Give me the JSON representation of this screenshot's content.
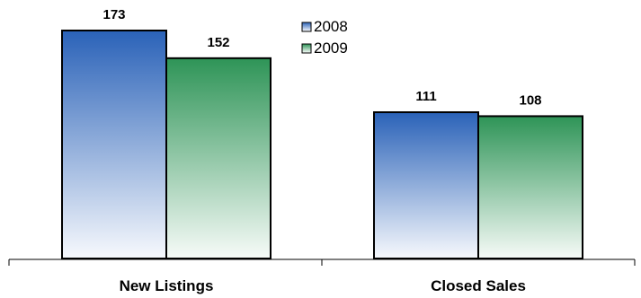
{
  "chart_data": {
    "type": "bar",
    "title": "",
    "xlabel": "",
    "ylabel": "",
    "categories": [
      "New Listings",
      "Closed Sales"
    ],
    "series": [
      {
        "name": "2008",
        "values": [
          173,
          111
        ],
        "color": "#2a62b8",
        "gradient_end": "#f7f9fd"
      },
      {
        "name": "2009",
        "values": [
          152,
          108
        ],
        "color": "#2e9457",
        "gradient_end": "#f7fbf8"
      }
    ],
    "ylim": [
      0,
      175
    ],
    "grid": false,
    "legend": "top-center",
    "data_labels": true
  }
}
